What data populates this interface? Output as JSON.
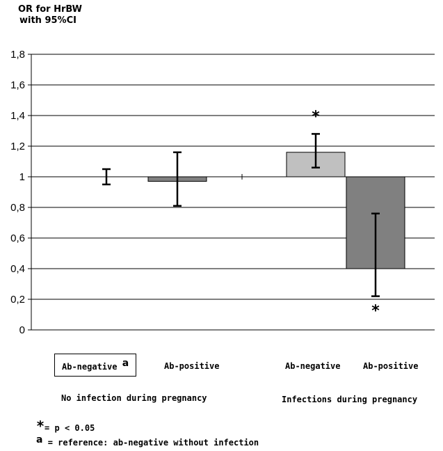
{
  "chart_data": {
    "type": "bar",
    "title": "",
    "ylabel": "OR for HrBW\nwith 95%CI",
    "xlabel": "",
    "ylim": [
      0,
      1.8
    ],
    "baseline": 1,
    "grid": true,
    "yticks": [
      "0",
      "0,2",
      "0,4",
      "0,6",
      "0,8",
      "1",
      "1,2",
      "1,4",
      "1,6",
      "1,8"
    ],
    "categories": [
      "Ab-negative",
      "Ab-positive",
      "Ab-negative",
      "Ab-positive"
    ],
    "groups": [
      "No infection during pregnancy",
      "Infections during pregnancy"
    ],
    "values": [
      1.0,
      0.97,
      1.16,
      0.4
    ],
    "ci_low": [
      0.95,
      0.81,
      1.06,
      0.22
    ],
    "ci_high": [
      1.05,
      1.16,
      1.28,
      0.76
    ],
    "bar_colors": [
      "#ffffff",
      "#808080",
      "#c0c0c0",
      "#808080"
    ],
    "significance": [
      "",
      "",
      "*",
      "*"
    ],
    "reference_mark": "a"
  },
  "legend": {
    "star_symbol": "*",
    "star_text": "= p < 0.05",
    "ref_symbol": "a",
    "ref_text": "= reference: ab-negative without infection"
  }
}
